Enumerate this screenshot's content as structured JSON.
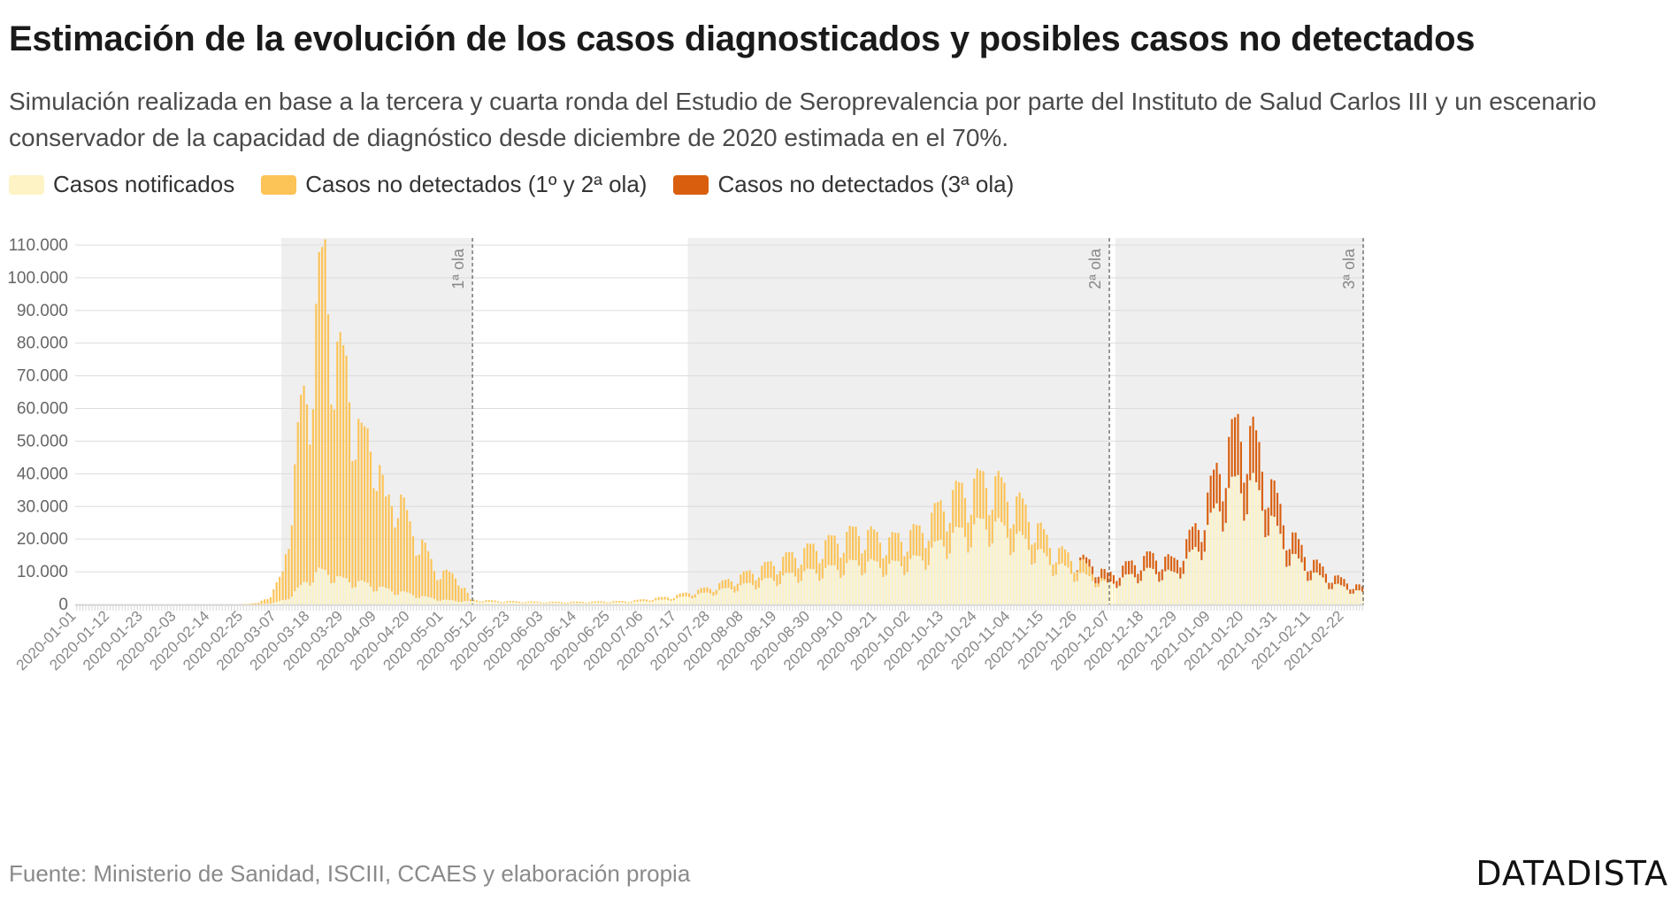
{
  "header": {
    "title": "Estimación de la evolución de los casos diagnosticados y posibles casos no detectados",
    "subtitle": "Simulación realizada en base a la tercera y cuarta ronda del Estudio de Seroprevalencia por parte del Instituto de Salud Carlos III y un escenario conservador de la capacidad de diagnóstico desde diciembre de 2020 estimada en el 70%."
  },
  "legend": [
    {
      "label": "Casos notificados",
      "color": "#fdf3c4"
    },
    {
      "label": "Casos no detectados (1º y 2ª ola)",
      "color": "#fcc356"
    },
    {
      "label": "Casos no detectados (3ª ola)",
      "color": "#d95f0e"
    }
  ],
  "footer": {
    "source": "Fuente: Ministerio de Sanidad, ISCIII, CCAES y elaboración propia",
    "brand": "DATADISTA"
  },
  "chart_data": {
    "type": "bar",
    "stacked": true,
    "x_start": "2020-01-01",
    "x_end": "2021-02-28",
    "ylim": [
      0,
      110000
    ],
    "yticks": [
      0,
      10000,
      20000,
      30000,
      40000,
      50000,
      60000,
      70000,
      80000,
      90000,
      100000,
      110000
    ],
    "ytick_labels": [
      "0",
      "10.000",
      "20.000",
      "30.000",
      "40.000",
      "50.000",
      "60.000",
      "70.000",
      "80.000",
      "90.000",
      "100.000",
      "110.000"
    ],
    "xtick_labels": [
      "2020-01-01",
      "2020-01-12",
      "2020-01-23",
      "2020-02-03",
      "2020-02-14",
      "2020-02-25",
      "2020-03-07",
      "2020-03-18",
      "2020-03-29",
      "2020-04-09",
      "2020-04-20",
      "2020-05-01",
      "2020-05-12",
      "2020-05-23",
      "2020-06-03",
      "2020-06-14",
      "2020-06-25",
      "2020-07-06",
      "2020-07-17",
      "2020-07-28",
      "2020-08-08",
      "2020-08-19",
      "2020-08-30",
      "2020-09-10",
      "2020-09-21",
      "2020-10-02",
      "2020-10-13",
      "2020-10-24",
      "2020-11-04",
      "2020-11-15",
      "2020-11-26",
      "2020-12-07",
      "2020-12-18",
      "2020-12-29",
      "2021-01-09",
      "2021-01-20",
      "2021-01-31",
      "2021-02-11",
      "2021-02-22"
    ],
    "grid": true,
    "legend_position": "top-left",
    "waves": [
      {
        "label": "1ª ola",
        "start": "2020-03-09",
        "end": "2020-05-10"
      },
      {
        "label": "2ª ola",
        "start": "2020-07-21",
        "end": "2020-12-06"
      },
      {
        "label": "3ª ola",
        "start": "2020-12-09",
        "end": "2021-02-28"
      }
    ],
    "series": [
      {
        "name": "Casos notificados",
        "color": "#fdf3c4",
        "knots": [
          [
            "2020-01-01",
            0
          ],
          [
            "2020-02-24",
            0
          ],
          [
            "2020-03-01",
            50
          ],
          [
            "2020-03-06",
            400
          ],
          [
            "2020-03-10",
            1500
          ],
          [
            "2020-03-14",
            4500
          ],
          [
            "2020-03-18",
            8000
          ],
          [
            "2020-03-21",
            9800
          ],
          [
            "2020-03-24",
            9500
          ],
          [
            "2020-03-28",
            7500
          ],
          [
            "2020-04-01",
            7000
          ],
          [
            "2020-04-06",
            6000
          ],
          [
            "2020-04-12",
            4500
          ],
          [
            "2020-04-18",
            3500
          ],
          [
            "2020-04-25",
            2200
          ],
          [
            "2020-05-01",
            1300
          ],
          [
            "2020-05-10",
            900
          ],
          [
            "2020-05-20",
            600
          ],
          [
            "2020-06-10",
            400
          ],
          [
            "2020-07-01",
            600
          ],
          [
            "2020-07-15",
            1500
          ],
          [
            "2020-07-28",
            3500
          ],
          [
            "2020-08-10",
            6000
          ],
          [
            "2020-08-25",
            9000
          ],
          [
            "2020-09-05",
            10500
          ],
          [
            "2020-09-15",
            12500
          ],
          [
            "2020-09-25",
            11500
          ],
          [
            "2020-10-05",
            13500
          ],
          [
            "2020-10-15",
            20000
          ],
          [
            "2020-10-28",
            24500
          ],
          [
            "2020-11-08",
            19000
          ],
          [
            "2020-11-18",
            12000
          ],
          [
            "2020-11-28",
            8500
          ],
          [
            "2020-12-06",
            6000
          ],
          [
            "2020-12-12",
            8000
          ],
          [
            "2020-12-20",
            10000
          ],
          [
            "2020-12-28",
            9000
          ],
          [
            "2021-01-05",
            17000
          ],
          [
            "2021-01-12",
            30000
          ],
          [
            "2021-01-18",
            36000
          ],
          [
            "2021-01-23",
            35000
          ],
          [
            "2021-01-28",
            27000
          ],
          [
            "2021-02-03",
            16000
          ],
          [
            "2021-02-10",
            10000
          ],
          [
            "2021-02-18",
            6000
          ],
          [
            "2021-02-28",
            3500
          ]
        ]
      },
      {
        "name": "Casos no detectados (1º y 2ª ola)",
        "color": "#fcc356",
        "knots": [
          [
            "2020-01-01",
            0
          ],
          [
            "2020-02-24",
            0
          ],
          [
            "2020-03-01",
            400
          ],
          [
            "2020-03-05",
            2500
          ],
          [
            "2020-03-09",
            8000
          ],
          [
            "2020-03-12",
            28000
          ],
          [
            "2020-03-15",
            52000
          ],
          [
            "2020-03-18",
            60000
          ],
          [
            "2020-03-21",
            84000
          ],
          [
            "2020-03-23",
            92000
          ],
          [
            "2020-03-26",
            68000
          ],
          [
            "2020-03-30",
            62000
          ],
          [
            "2020-04-04",
            42000
          ],
          [
            "2020-04-08",
            44000
          ],
          [
            "2020-04-12",
            25000
          ],
          [
            "2020-04-16",
            30000
          ],
          [
            "2020-04-20",
            20000
          ],
          [
            "2020-04-24",
            16000
          ],
          [
            "2020-04-28",
            9000
          ],
          [
            "2020-05-02",
            8000
          ],
          [
            "2020-05-06",
            7000
          ],
          [
            "2020-05-10",
            500
          ],
          [
            "2020-06-01",
            300
          ],
          [
            "2020-07-01",
            400
          ],
          [
            "2020-07-15",
            800
          ],
          [
            "2020-07-28",
            1500
          ],
          [
            "2020-08-10",
            3500
          ],
          [
            "2020-08-25",
            6000
          ],
          [
            "2020-09-05",
            8000
          ],
          [
            "2020-09-15",
            9500
          ],
          [
            "2020-09-25",
            7500
          ],
          [
            "2020-10-05",
            8500
          ],
          [
            "2020-10-15",
            12000
          ],
          [
            "2020-10-28",
            13500
          ],
          [
            "2020-11-08",
            10000
          ],
          [
            "2020-11-18",
            5000
          ],
          [
            "2020-11-28",
            3500
          ],
          [
            "2020-12-06",
            0
          ],
          [
            "2021-02-28",
            0
          ]
        ]
      },
      {
        "name": "Casos no detectados (3ª ola)",
        "color": "#d95f0e",
        "knots": [
          [
            "2020-01-01",
            0
          ],
          [
            "2020-11-25",
            0
          ],
          [
            "2020-12-01",
            2500
          ],
          [
            "2020-12-08",
            2800
          ],
          [
            "2020-12-12",
            3500
          ],
          [
            "2020-12-20",
            4500
          ],
          [
            "2020-12-28",
            4000
          ],
          [
            "2021-01-05",
            7000
          ],
          [
            "2021-01-12",
            12000
          ],
          [
            "2021-01-18",
            17000
          ],
          [
            "2021-01-23",
            15000
          ],
          [
            "2021-01-28",
            11000
          ],
          [
            "2021-02-03",
            7000
          ],
          [
            "2021-02-10",
            4000
          ],
          [
            "2021-02-18",
            2500
          ],
          [
            "2021-02-28",
            1500
          ]
        ]
      }
    ]
  }
}
